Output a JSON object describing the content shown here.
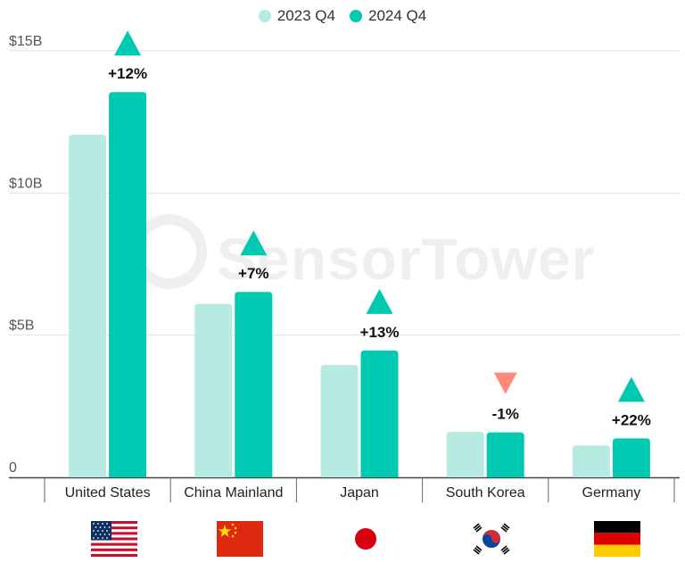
{
  "legend": [
    {
      "label": "2023 Q4",
      "color": "#b7ebe2"
    },
    {
      "label": "2024 Q4",
      "color": "#00c9b1"
    }
  ],
  "watermark": {
    "text": "SensorTower"
  },
  "colors": {
    "up": "#00c9b1",
    "down": "#ff8a7a",
    "grid": "#e3e3e3",
    "axis": "#444444"
  },
  "chart_data": {
    "type": "bar",
    "categories": [
      "United States",
      "China Mainland",
      "Japan",
      "South Korea",
      "Germany"
    ],
    "series": [
      {
        "name": "2023 Q4",
        "values": [
          12.05,
          6.1,
          3.95,
          1.6,
          1.12
        ]
      },
      {
        "name": "2024 Q4",
        "values": [
          13.55,
          6.52,
          4.46,
          1.58,
          1.37
        ]
      }
    ],
    "annotations": [
      "+12%",
      "+7%",
      "+13%",
      "-1%",
      "+22%"
    ],
    "directions": [
      "up",
      "up",
      "up",
      "down",
      "up"
    ],
    "y_ticks": [
      {
        "value": 0,
        "label": "0"
      },
      {
        "value": 5,
        "label": "$5B"
      },
      {
        "value": 10,
        "label": "$10B"
      },
      {
        "value": 15,
        "label": "$15B"
      }
    ],
    "ylim": [
      0,
      15
    ],
    "grid": true,
    "legend_position": "top-center",
    "flags": [
      "us-flag-icon",
      "china-flag-icon",
      "japan-flag-icon",
      "south-korea-flag-icon",
      "germany-flag-icon"
    ]
  }
}
